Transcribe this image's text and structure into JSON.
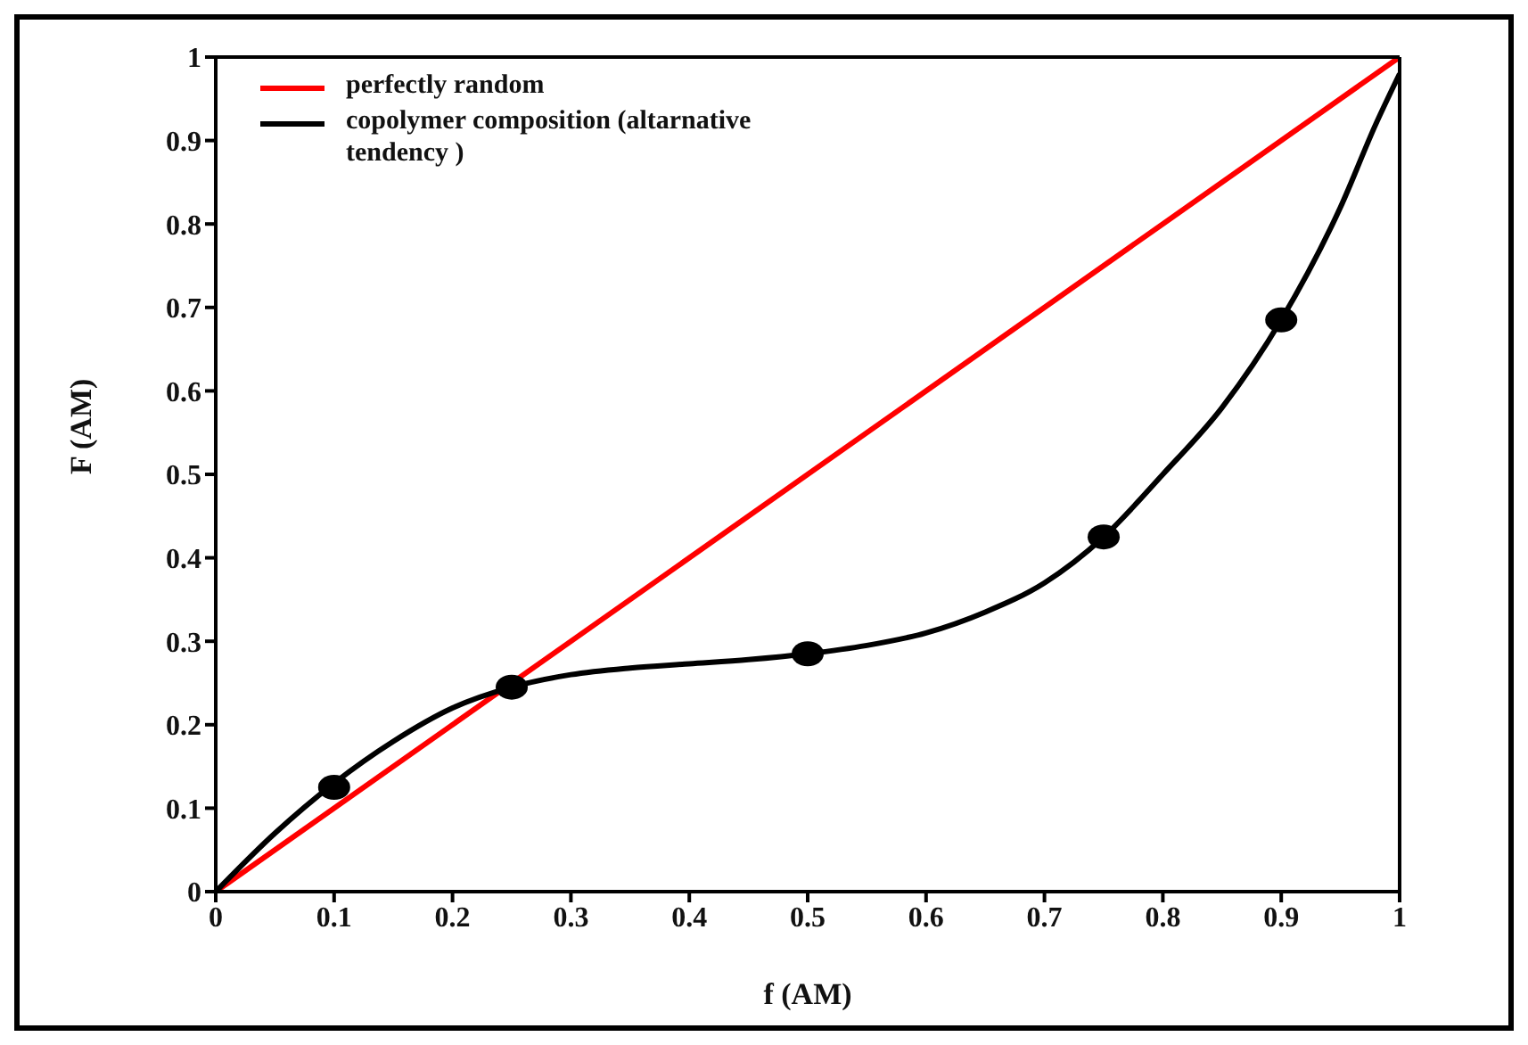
{
  "chart_data": {
    "type": "line",
    "xlabel": "f (AM)",
    "ylabel": "F (AM)",
    "xlim": [
      0,
      1
    ],
    "ylim": [
      0,
      1
    ],
    "xticks": [
      0,
      0.1,
      0.2,
      0.3,
      0.4,
      0.5,
      0.6,
      0.7,
      0.8,
      0.9,
      1
    ],
    "yticks": [
      0,
      0.1,
      0.2,
      0.3,
      0.4,
      0.5,
      0.6,
      0.7,
      0.8,
      0.9,
      1
    ],
    "grid": false,
    "legend": "top left",
    "marker": "none",
    "line_style": "solid",
    "series": [
      {
        "name": "perfectly random",
        "type": "line",
        "color": "#ff0000",
        "x": [
          0,
          1
        ],
        "values": [
          0,
          1
        ]
      },
      {
        "name": "copolymer composition (altarnative tendency )",
        "type": "line",
        "color": "#000000",
        "x": [
          0,
          0.05,
          0.1,
          0.15,
          0.2,
          0.25,
          0.3,
          0.35,
          0.4,
          0.45,
          0.5,
          0.55,
          0.6,
          0.65,
          0.7,
          0.75,
          0.8,
          0.85,
          0.9,
          0.95,
          0.98,
          1
        ],
        "values": [
          0,
          0.07,
          0.13,
          0.18,
          0.22,
          0.245,
          0.26,
          0.268,
          0.273,
          0.278,
          0.285,
          0.295,
          0.31,
          0.335,
          0.37,
          0.425,
          0.5,
          0.58,
          0.685,
          0.82,
          0.92,
          0.98
        ]
      },
      {
        "type": "scatter",
        "marker": "circle",
        "color": "#000000",
        "x": [
          0.1,
          0.25,
          0.5,
          0.75,
          0.9
        ],
        "values": [
          0.125,
          0.245,
          0.285,
          0.425,
          0.685
        ]
      }
    ]
  }
}
